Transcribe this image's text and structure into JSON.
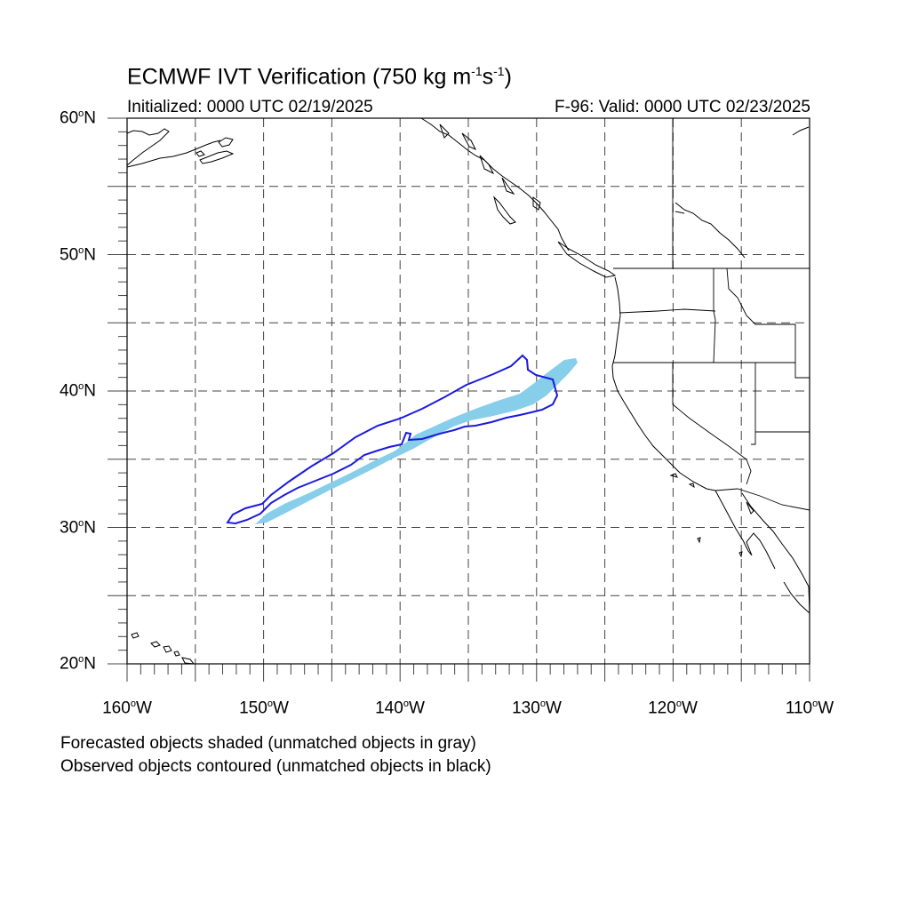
{
  "title": {
    "main": "ECMWF IVT Verification (750 kg m",
    "sup1": "-1",
    "mid": "s",
    "sup2": "-1",
    "end": ")"
  },
  "initialized": "Initialized: 0000 UTC 02/19/2025",
  "valid": "F-96: Valid: 0000 UTC 02/23/2025",
  "lat_labels": [
    {
      "deg": "60",
      "hem": "N"
    },
    {
      "deg": "50",
      "hem": "N"
    },
    {
      "deg": "40",
      "hem": "N"
    },
    {
      "deg": "30",
      "hem": "N"
    },
    {
      "deg": "20",
      "hem": "N"
    }
  ],
  "lon_labels": [
    {
      "deg": "160",
      "hem": "W"
    },
    {
      "deg": "150",
      "hem": "W"
    },
    {
      "deg": "140",
      "hem": "W"
    },
    {
      "deg": "130",
      "hem": "W"
    },
    {
      "deg": "120",
      "hem": "W"
    },
    {
      "deg": "110",
      "hem": "W"
    }
  ],
  "notes": {
    "forecast": "Forecasted objects shaded (unmatched objects in gray)",
    "observed": "Observed objects contoured (unmatched objects in black)"
  },
  "map": {
    "lon_range": [
      -160,
      -110
    ],
    "lat_range": [
      20,
      60
    ],
    "grid_spacing_deg": 5,
    "grid_style": "dashed",
    "forecast_color": "#87ceeb",
    "observed_color": "#1a1adc"
  }
}
